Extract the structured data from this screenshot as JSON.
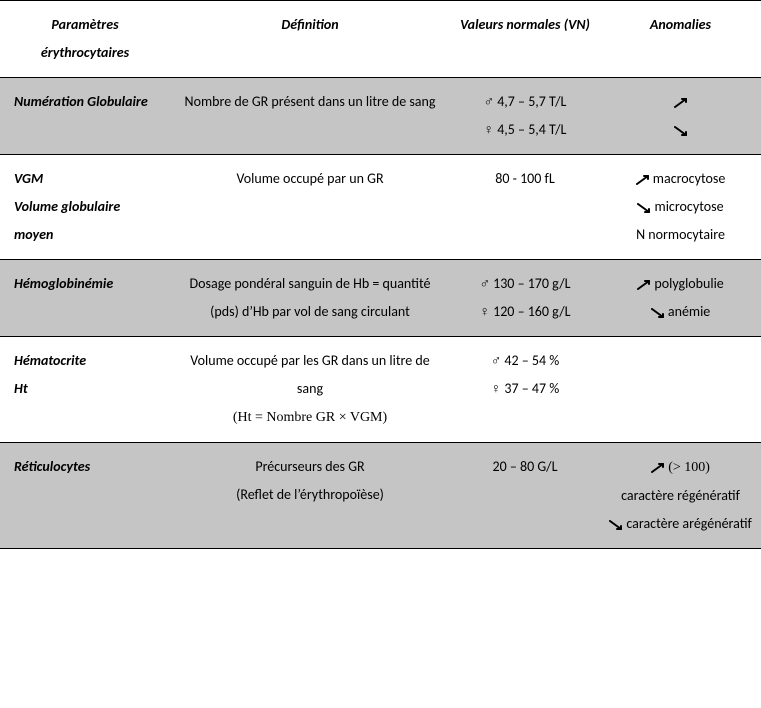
{
  "header": {
    "col1": "Paramètres érythrocytaires",
    "col2": "Définition",
    "col3": "Valeurs normales (VN)",
    "col4": "Anomalies"
  },
  "rows": [
    {
      "param": "Numération Globulaire",
      "def": "Nombre de GR présent dans un litre de sang",
      "val": "♂ 4,7 – 5,7 T/L\n♀  4,5 – 5,4 T/L",
      "anom_lines": [
        {
          "arrow": "up",
          "text": ""
        },
        {
          "arrow": "down",
          "text": ""
        }
      ],
      "shaded": true
    },
    {
      "param": "VGM\nVolume globulaire moyen",
      "def": "Volume occupé par un GR",
      "val": "80 - 100 fL",
      "anom_lines": [
        {
          "arrow": "up",
          "text": " macrocytose"
        },
        {
          "arrow": "down",
          "text": " microcytose"
        },
        {
          "arrow": null,
          "text": "N normocytaire"
        }
      ],
      "shaded": false
    },
    {
      "param": "Hémoglobinémie",
      "def": "Dosage pondéral sanguin de Hb = quantité (pds) d’Hb par vol de sang circulant",
      "val": "♂ 130 – 170 g/L\n♀  120 – 160 g/L",
      "anom_lines": [
        {
          "arrow": "up",
          "text": " polyglobulie"
        },
        {
          "arrow": "down",
          "text": " anémie"
        }
      ],
      "shaded": true
    },
    {
      "param": "Hématocrite\nHt",
      "def": "Volume occupé par les GR dans un litre de sang",
      "def_formula": "(Ht =  Nombre GR × VGM)",
      "val": "♂ 42 – 54 %\n♀  37 – 47 %",
      "anom_lines": [],
      "shaded": false
    },
    {
      "param": "Réticulocytes",
      "def": "Précurseurs des GR\n(Reflet de l’érythropoïèse)",
      "val": "20 – 80 G/L",
      "anom_lines": [
        {
          "arrow": "up",
          "text": " ",
          "serif_after": "(> 100)"
        },
        {
          "arrow": null,
          "text": "caractère régénératif"
        },
        {
          "arrow": "down",
          "text": " caractère arégénératif"
        }
      ],
      "shaded": true
    }
  ],
  "style": {
    "shaded_bg": "#c5c5c5",
    "border_color": "#000000",
    "font_size": 14,
    "line_height": 2.0,
    "arrow_color": "#000000"
  }
}
